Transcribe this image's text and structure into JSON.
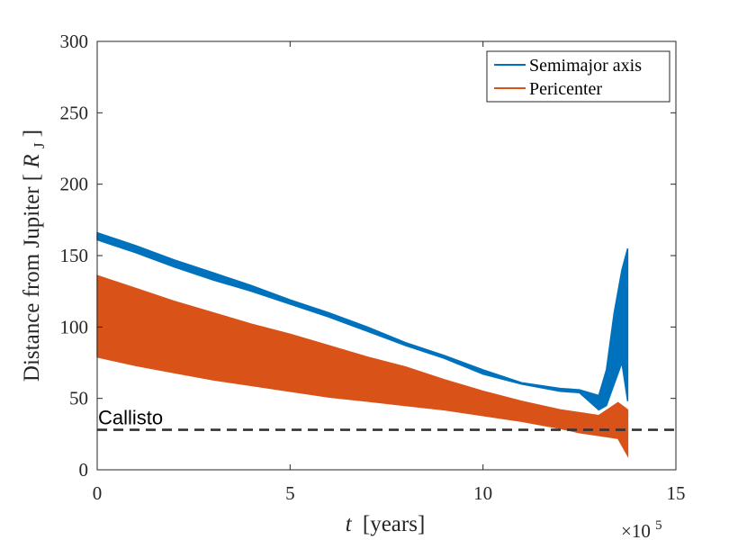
{
  "chart_data": {
    "type": "line",
    "title": "",
    "xlabel_var": "t",
    "xlabel_unit": "[years]",
    "ylabel_main": "Distance from Jupiter [",
    "ylabel_var": "R",
    "ylabel_sub": "J",
    "ylabel_end": "]",
    "xlim": [
      0,
      15
    ],
    "ylim": [
      0,
      300
    ],
    "x_exponent_base": "×10",
    "x_exponent_power": "5",
    "x_ticks": [
      "0",
      "5",
      "10",
      "15"
    ],
    "y_ticks": [
      "0",
      "50",
      "100",
      "150",
      "200",
      "250",
      "300"
    ],
    "series": [
      {
        "name": "Semimajor axis",
        "color": "#0072BD",
        "x": [
          0,
          1,
          2,
          3,
          4,
          5,
          6,
          7,
          8,
          9,
          10,
          11,
          12,
          12.5,
          13,
          13.2,
          13.4,
          13.6,
          13.75
        ],
        "y_upper": [
          166,
          157,
          147,
          138,
          129,
          119,
          110,
          100,
          89,
          80,
          70,
          61,
          57,
          56,
          52,
          70,
          110,
          140,
          155
        ],
        "y_lower": [
          161,
          152,
          142,
          133,
          125,
          116,
          107,
          97,
          87,
          78,
          67,
          60,
          55,
          54,
          42,
          45,
          60,
          75,
          48
        ]
      },
      {
        "name": "Pericenter",
        "color": "#D95319",
        "x": [
          0,
          1,
          2,
          3,
          4,
          5,
          6,
          7,
          8,
          9,
          10,
          11,
          12,
          12.5,
          13,
          13.5,
          13.75
        ],
        "y_upper": [
          136,
          127,
          118,
          110,
          102,
          95,
          87,
          79,
          72,
          63,
          55,
          48,
          42,
          40,
          38,
          47,
          42
        ],
        "y_lower": [
          79,
          73,
          68,
          63,
          59,
          55,
          51,
          48,
          45,
          42,
          38,
          34,
          29,
          26,
          24,
          22,
          10
        ]
      }
    ],
    "reference_line": {
      "label": "Callisto",
      "y": 28,
      "color": "#333333",
      "style": "dashed"
    },
    "legend_position": "top-right",
    "grid": false
  }
}
